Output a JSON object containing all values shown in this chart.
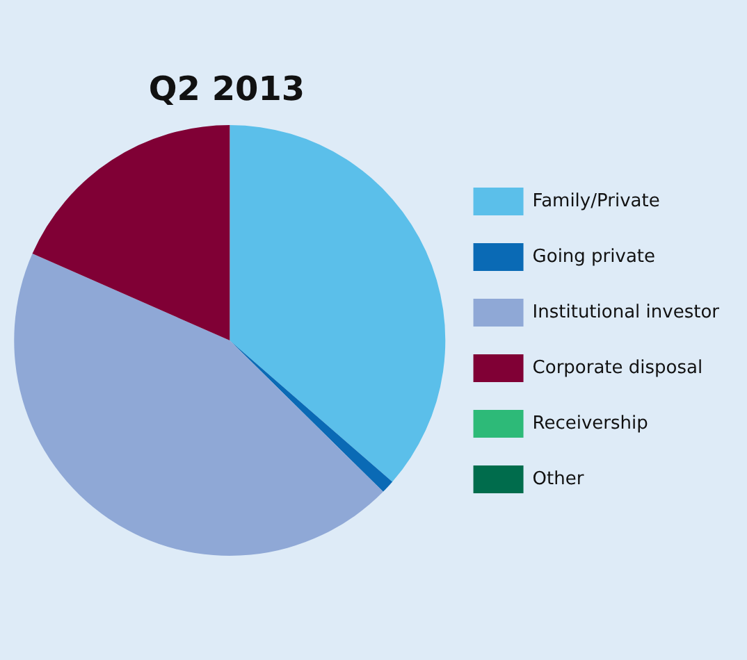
{
  "chart_data": {
    "type": "pie",
    "title": "Q2 2013",
    "categories": [
      "Family/Private",
      "Going private",
      "Institutional investor",
      "Corporate disposal",
      "Receivership",
      "Other"
    ],
    "values": [
      36.4,
      1,
      44.2,
      18.4,
      0,
      0
    ],
    "colors": [
      "#5bbfea",
      "#0a6ab5",
      "#8fa8d6",
      "#800035",
      "#2dba78",
      "#006c4c"
    ],
    "legend": "right"
  }
}
